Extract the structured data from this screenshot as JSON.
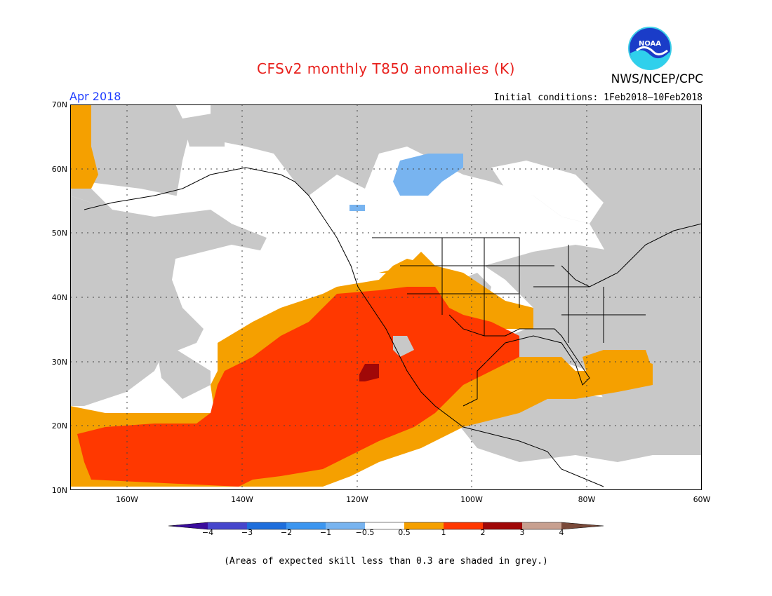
{
  "header": {
    "title": "CFSv2 monthly T850 anomalies (K)",
    "agency": "NWS/NCEP/CPC",
    "logo_text": "NOAA",
    "valid_month": "Apr 2018",
    "initial_conditions": "Initial conditions: 1Feb2018–10Feb2018"
  },
  "map": {
    "lat_labels": [
      "70N",
      "60N",
      "50N",
      "40N",
      "30N",
      "20N",
      "10N"
    ],
    "lat_values": [
      70,
      60,
      50,
      40,
      30,
      20,
      10
    ],
    "lon_labels": [
      "160W",
      "140W",
      "120W",
      "100W",
      "80W",
      "60W"
    ],
    "lon_values": [
      -160,
      -140,
      -120,
      -100,
      -80,
      -60
    ],
    "lon_range": [
      -171,
      -60
    ],
    "lat_range": [
      10,
      70
    ],
    "grid": true,
    "colors": {
      "ocean_land_bg": "#ffffff",
      "low_skill": "#c8c8c8",
      "neg_1": "#78b4f0",
      "pos_05": "#f5a000",
      "pos_1": "#ff3800",
      "pos_2": "#a00808"
    }
  },
  "colorbar": {
    "tick_labels": [
      "−4",
      "−3",
      "−2",
      "−1",
      "−0.5",
      "0.5",
      "1",
      "2",
      "3",
      "4"
    ],
    "colors": [
      "#3a0c9c",
      "#4646cc",
      "#1e6edc",
      "#3c96f0",
      "#78b4f0",
      "#ffffff",
      "#f5a000",
      "#ff3800",
      "#a00808",
      "#c8a090",
      "#7a4a3a"
    ]
  },
  "footnote": "(Areas of expected skill less than 0.3 are shaded in grey.)"
}
